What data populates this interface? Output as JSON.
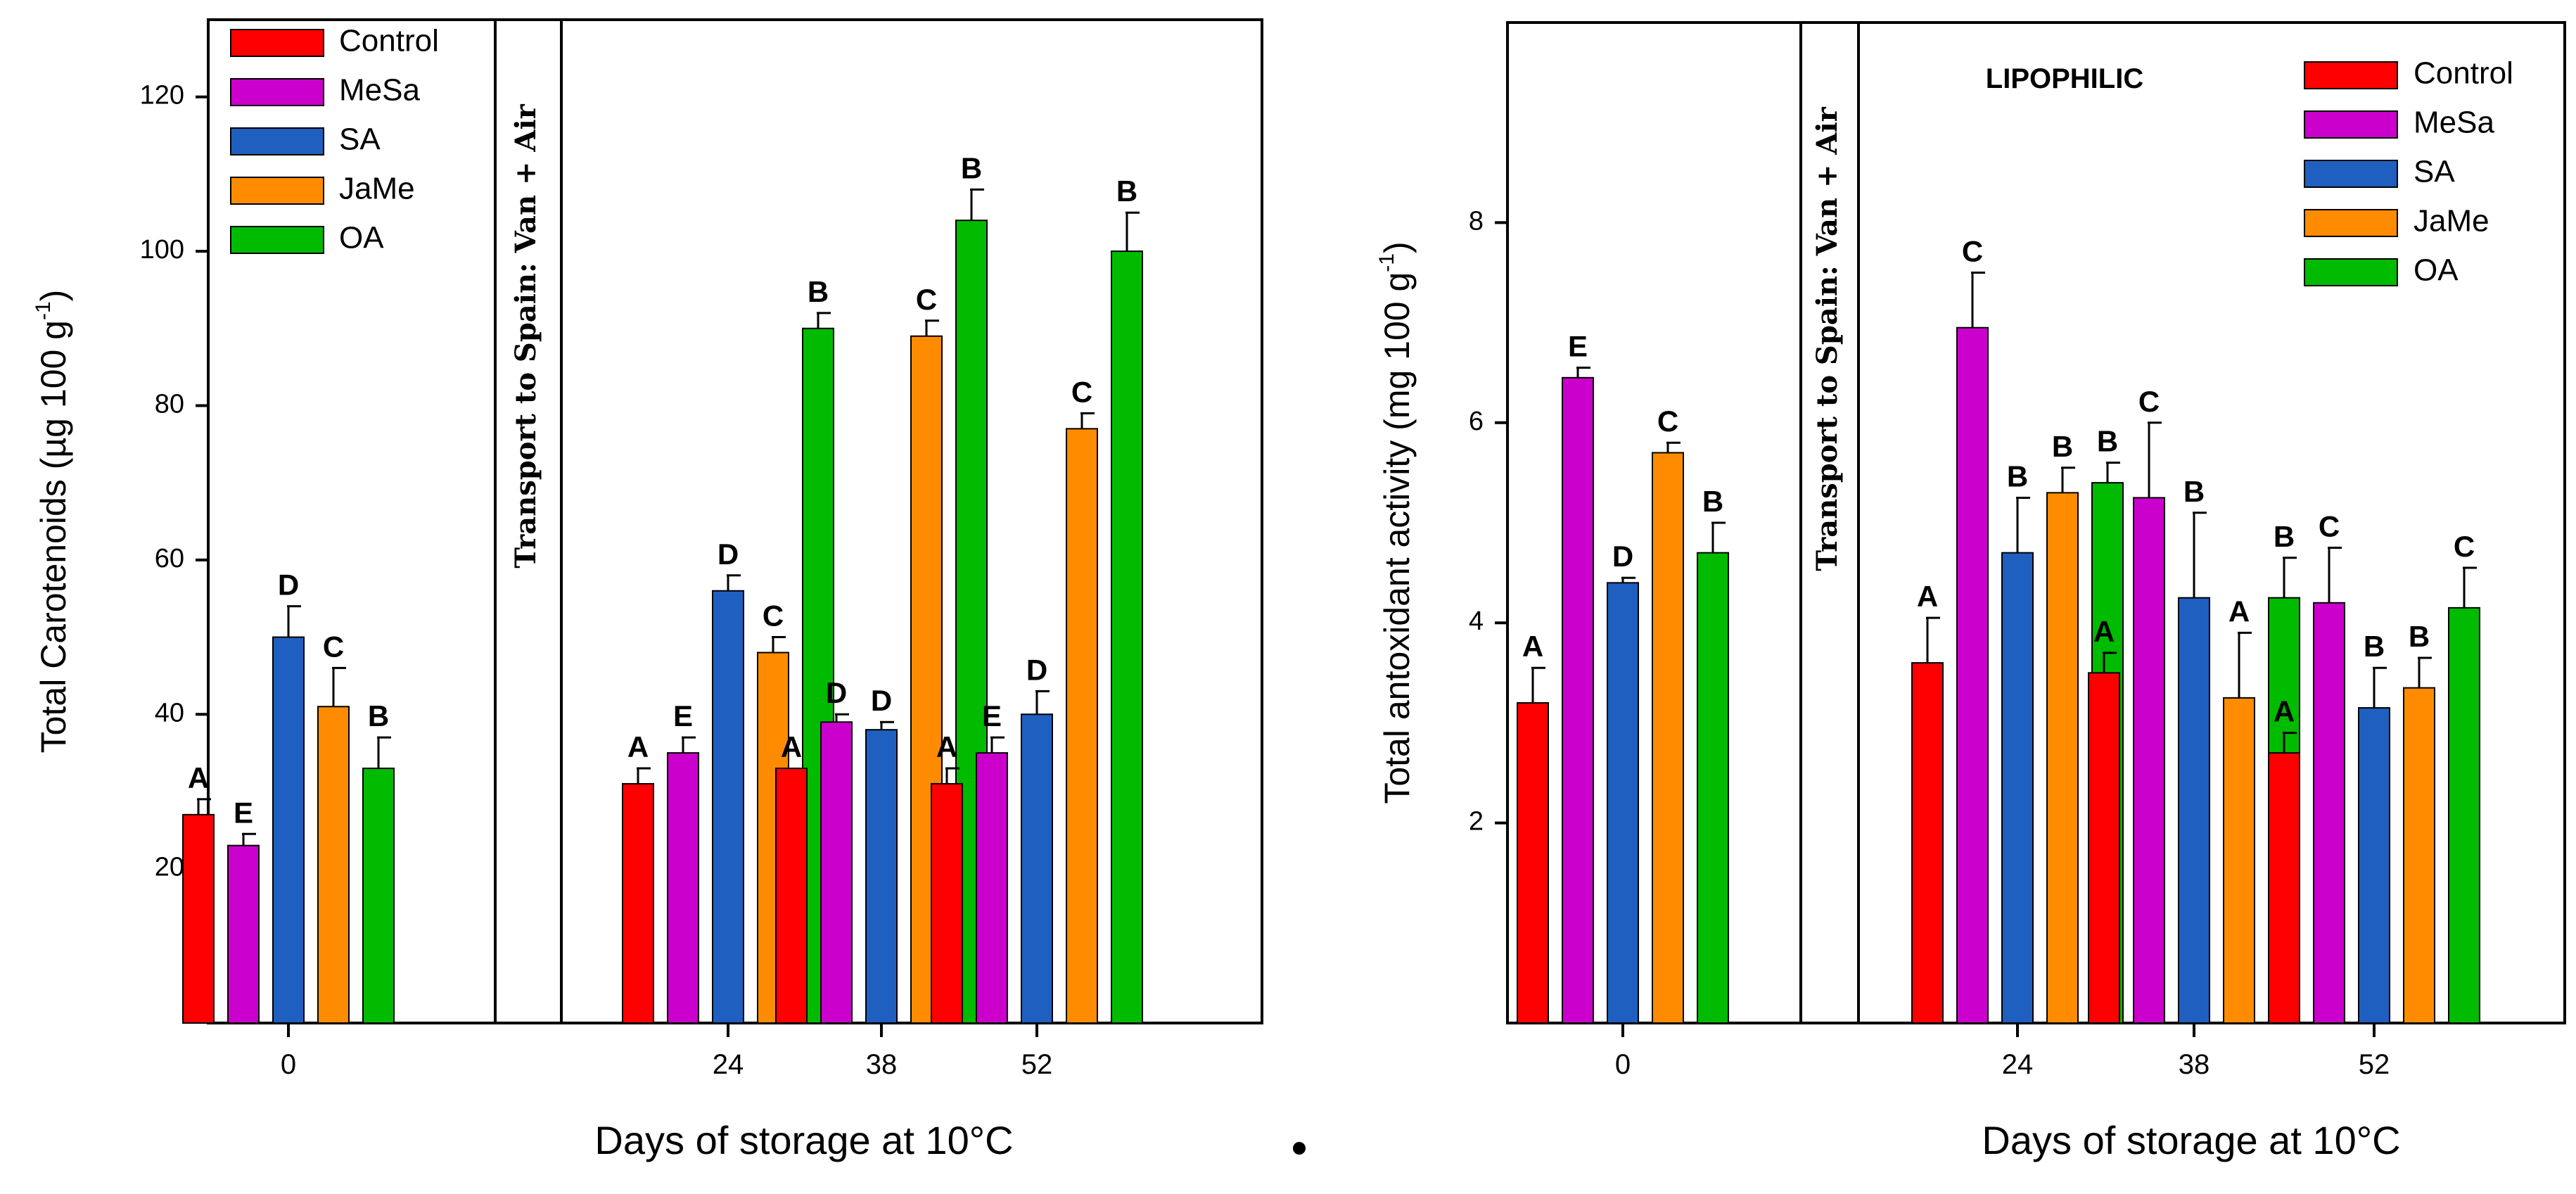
{
  "colors": {
    "Control": "#ff0000",
    "MeSa": "#cc00cc",
    "SA": "#1f5fbf",
    "JaMe": "#ff8c00",
    "OA": "#00bb00",
    "errorbar": "#000000"
  },
  "chart_data": [
    {
      "type": "bar",
      "title": "",
      "ylabel_main": "Total Carotenoids (µg 100 g",
      "ylabel_sup": "-1",
      "ylabel_end": ")",
      "xlabel": "Days of storage at 10°C",
      "ylim": [
        0,
        130
      ],
      "yticks": [
        20,
        40,
        60,
        80,
        100,
        120
      ],
      "categories": [
        "0",
        "24",
        "38",
        "52"
      ],
      "transport_label": "Transport to Spain: Van + Air",
      "legend": [
        "Control",
        "MeSa",
        "SA",
        "JaMe",
        "OA"
      ],
      "series": [
        {
          "name": "Control",
          "values": [
            27,
            31,
            33,
            31
          ],
          "errors": [
            2,
            2,
            0,
            2
          ],
          "letters": [
            "A",
            "A",
            "A",
            "A"
          ]
        },
        {
          "name": "MeSa",
          "values": [
            23,
            35,
            39,
            35
          ],
          "errors": [
            1.5,
            2,
            1,
            2
          ],
          "letters": [
            "E",
            "E",
            "D",
            "E"
          ]
        },
        {
          "name": "SA",
          "values": [
            50,
            56,
            38,
            40
          ],
          "errors": [
            4,
            2,
            1,
            3
          ],
          "letters": [
            "D",
            "D",
            "D",
            "D"
          ]
        },
        {
          "name": "JaMe",
          "values": [
            41,
            48,
            89,
            77
          ],
          "errors": [
            5,
            2,
            2,
            2
          ],
          "letters": [
            "C",
            "C",
            "C",
            "C"
          ]
        },
        {
          "name": "OA",
          "values": [
            33,
            90,
            104,
            100
          ],
          "errors": [
            4,
            2,
            4,
            5
          ],
          "letters": [
            "B",
            "B",
            "B",
            "B"
          ]
        }
      ]
    },
    {
      "type": "bar",
      "title": "",
      "ylabel_main": "Total antoxidant activity (mg 100 g",
      "ylabel_sup": "-1",
      "ylabel_end": ")",
      "xlabel": "Days of storage at 10°C",
      "panel_label": "LIPOPHILIC",
      "ylim": [
        0,
        10
      ],
      "yticks": [
        2,
        4,
        6,
        8
      ],
      "categories": [
        "0",
        "24",
        "38",
        "52"
      ],
      "transport_label": "Transport to Spain: Van + Air",
      "legend": [
        "Control",
        "MeSa",
        "SA",
        "JaMe",
        "OA"
      ],
      "series": [
        {
          "name": "Control",
          "values": [
            3.2,
            3.6,
            3.5,
            2.7
          ],
          "errors": [
            0.35,
            0.45,
            0.2,
            0.2
          ],
          "letters": [
            "A",
            "A",
            "A",
            "A"
          ]
        },
        {
          "name": "MeSa",
          "values": [
            6.45,
            6.95,
            5.25,
            4.2
          ],
          "errors": [
            0.1,
            0.55,
            0.75,
            0.55
          ],
          "letters": [
            "E",
            "C",
            "C",
            "C"
          ]
        },
        {
          "name": "SA",
          "values": [
            4.4,
            4.7,
            4.25,
            3.15
          ],
          "errors": [
            0.05,
            0.55,
            0.85,
            0.4
          ],
          "letters": [
            "D",
            "B",
            "B",
            "B"
          ]
        },
        {
          "name": "JaMe",
          "values": [
            5.7,
            5.3,
            3.25,
            3.35
          ],
          "errors": [
            0.1,
            0.25,
            0.65,
            0.3
          ],
          "letters": [
            "C",
            "B",
            "A",
            "B"
          ]
        },
        {
          "name": "OA",
          "values": [
            4.7,
            5.4,
            4.25,
            4.15
          ],
          "errors": [
            0.3,
            0.2,
            0.4,
            0.4
          ],
          "letters": [
            "B",
            "B",
            "B",
            "C"
          ]
        }
      ]
    }
  ]
}
